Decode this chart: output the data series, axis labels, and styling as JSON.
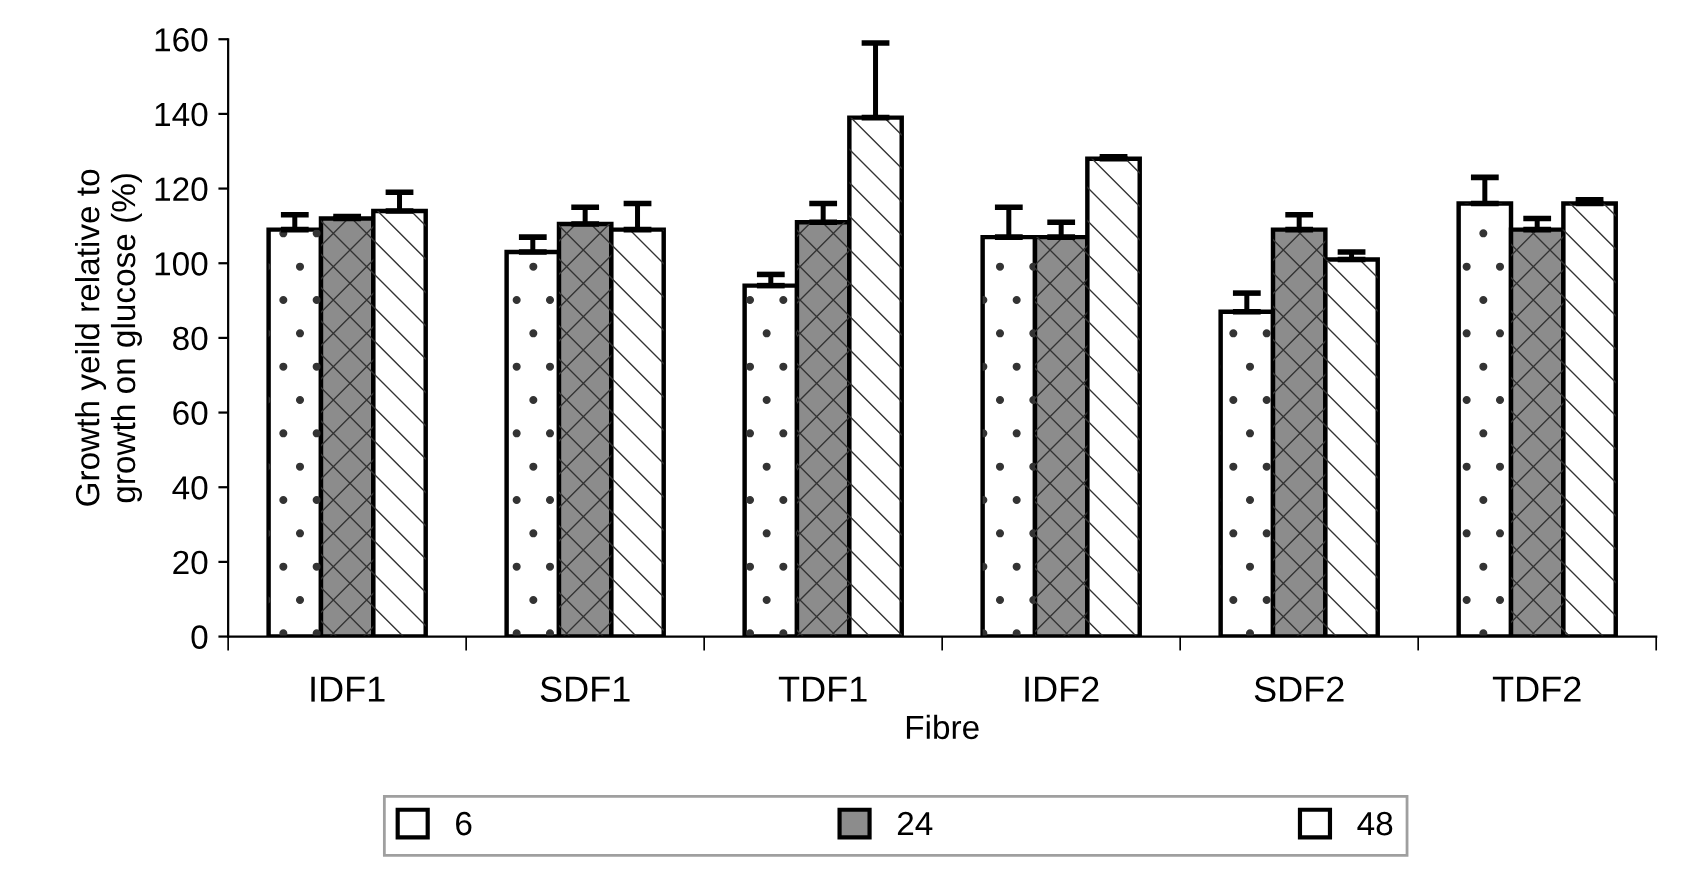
{
  "chart_data": {
    "type": "bar",
    "xlabel": "Fibre",
    "ylabel": "Growth yeild relative to\ngrowth on glucose (%)",
    "categories": [
      "IDF1",
      "SDF1",
      "TDF1",
      "IDF2",
      "SDF2",
      "TDF2"
    ],
    "series": [
      {
        "name": "6",
        "color": "#ffffff",
        "values": [
          109,
          103,
          94,
          107,
          87,
          116
        ],
        "errors": [
          [
            109,
            113
          ],
          [
            103,
            107
          ],
          [
            94,
            97
          ],
          [
            107,
            115
          ],
          [
            87,
            92
          ],
          [
            116,
            123
          ]
        ]
      },
      {
        "name": "24",
        "color": "#8c8c8c",
        "values": [
          112,
          110.5,
          111,
          107,
          109,
          109
        ],
        "errors": [
          [
            112,
            112.5
          ],
          [
            110.5,
            115
          ],
          [
            111,
            116
          ],
          [
            107,
            111
          ],
          [
            109,
            113
          ],
          [
            109,
            112
          ]
        ]
      },
      {
        "name": "48",
        "color": "#ffffff",
        "values": [
          114,
          109,
          139,
          128,
          101,
          116
        ],
        "errors": [
          [
            114,
            119
          ],
          [
            109,
            116
          ],
          [
            139,
            159
          ],
          [
            128,
            128.5
          ],
          [
            101,
            103
          ],
          [
            116,
            117
          ]
        ]
      }
    ],
    "ylim": [
      0,
      160
    ],
    "yticks": [
      0,
      20,
      40,
      60,
      80,
      100,
      120,
      140,
      160
    ],
    "grid": false,
    "legend": "bottom"
  }
}
